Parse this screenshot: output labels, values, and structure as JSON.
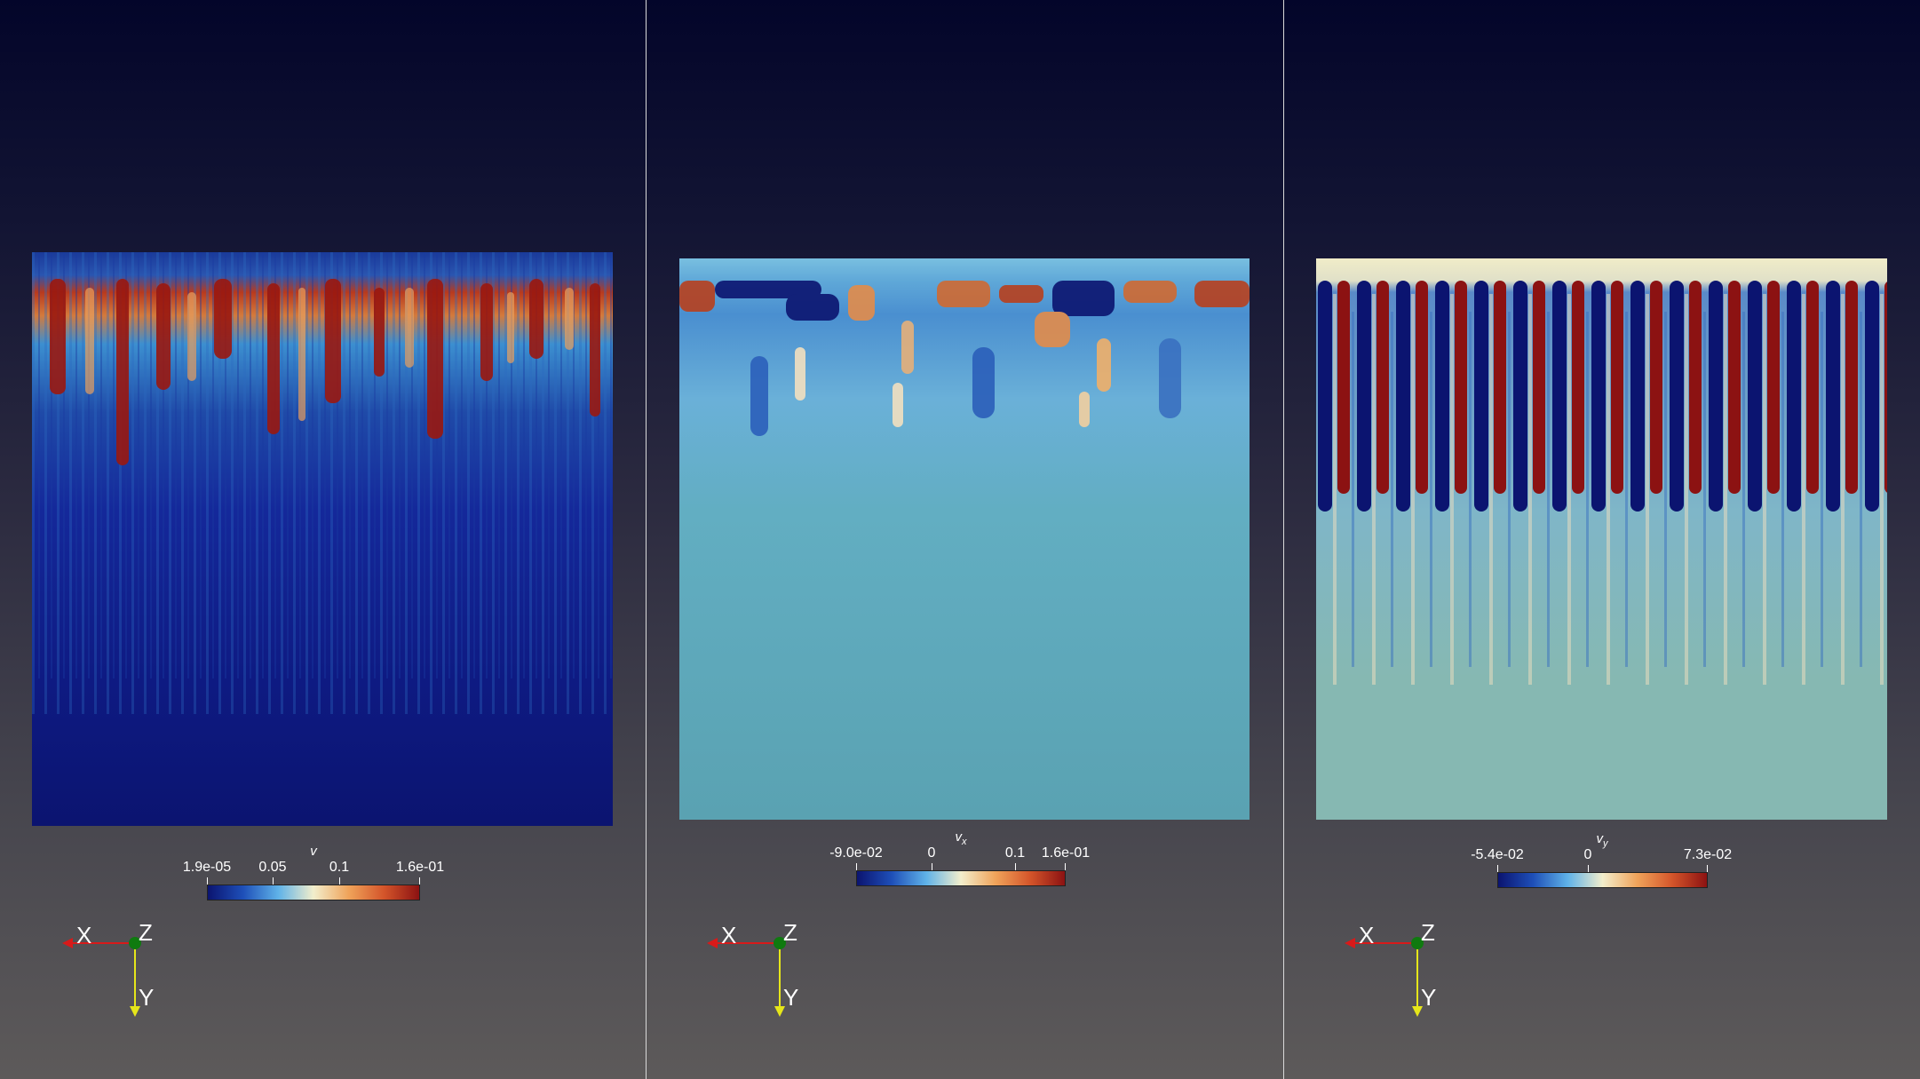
{
  "views": [
    {
      "colorbar": {
        "title": "v",
        "subscript": "",
        "ticks": [
          {
            "label": "1.9e-05",
            "pos": 0.0
          },
          {
            "label": "0.05",
            "pos": 0.31
          },
          {
            "label": "0.1",
            "pos": 0.62
          },
          {
            "label": "1.6e-01",
            "pos": 1.0
          }
        ]
      },
      "axes": {
        "x": "X",
        "y": "Y",
        "z": "Z"
      }
    },
    {
      "colorbar": {
        "title": "v",
        "subscript": "x",
        "ticks": [
          {
            "label": "-9.0e-02",
            "pos": 0.0
          },
          {
            "label": "0",
            "pos": 0.36
          },
          {
            "label": "0.1",
            "pos": 0.76
          },
          {
            "label": "1.6e-01",
            "pos": 1.0
          }
        ]
      },
      "axes": {
        "x": "X",
        "y": "Y",
        "z": "Z"
      }
    },
    {
      "colorbar": {
        "title": "v",
        "subscript": "y",
        "ticks": [
          {
            "label": "-5.4e-02",
            "pos": 0.0
          },
          {
            "label": "0",
            "pos": 0.43
          },
          {
            "label": "7.3e-02",
            "pos": 1.0
          }
        ]
      },
      "axes": {
        "x": "X",
        "y": "Y",
        "z": "Z"
      }
    }
  ],
  "colors": {
    "colormap": [
      "#0b1470",
      "#1e4fb8",
      "#5fb2e8",
      "#f2eecc",
      "#f0a35a",
      "#d4552a",
      "#8c1212"
    ],
    "axis_x": "#d81a1a",
    "axis_y": "#e6e61a",
    "axis_z": "#0f7a0f"
  }
}
